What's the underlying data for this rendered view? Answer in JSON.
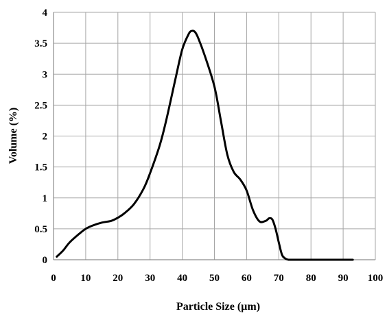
{
  "chart_data": {
    "type": "line",
    "title": "",
    "xlabel": "Particle Size (µm)",
    "ylabel": "Volume (%)",
    "xlim": [
      0,
      100
    ],
    "ylim": [
      0,
      4
    ],
    "x_ticks": [
      "0",
      "10",
      "20",
      "30",
      "40",
      "50",
      "60",
      "70",
      "80",
      "90",
      "100"
    ],
    "y_ticks": [
      "0",
      "0.5",
      "1",
      "1.5",
      "2",
      "2.5",
      "3",
      "3.5",
      "4"
    ],
    "grid": true,
    "legend": "none",
    "series": [
      {
        "color": "#000000",
        "x": [
          1,
          3,
          5,
          8,
          10,
          12,
          15,
          18,
          20,
          22,
          25,
          28,
          30,
          33,
          35,
          38,
          40,
          42,
          43,
          44,
          45,
          47,
          50,
          52,
          54,
          56,
          58,
          60,
          62,
          64,
          66,
          67,
          68,
          69,
          70,
          71,
          72,
          73,
          75,
          80,
          85,
          90,
          93
        ],
        "y": [
          0.05,
          0.15,
          0.28,
          0.42,
          0.5,
          0.55,
          0.6,
          0.63,
          0.68,
          0.75,
          0.9,
          1.15,
          1.4,
          1.85,
          2.25,
          2.95,
          3.4,
          3.65,
          3.7,
          3.68,
          3.58,
          3.3,
          2.8,
          2.25,
          1.7,
          1.42,
          1.3,
          1.12,
          0.8,
          0.62,
          0.63,
          0.67,
          0.65,
          0.5,
          0.28,
          0.08,
          0.02,
          0.0,
          0.0,
          0.0,
          0.0,
          0.0,
          0.0
        ]
      }
    ]
  }
}
